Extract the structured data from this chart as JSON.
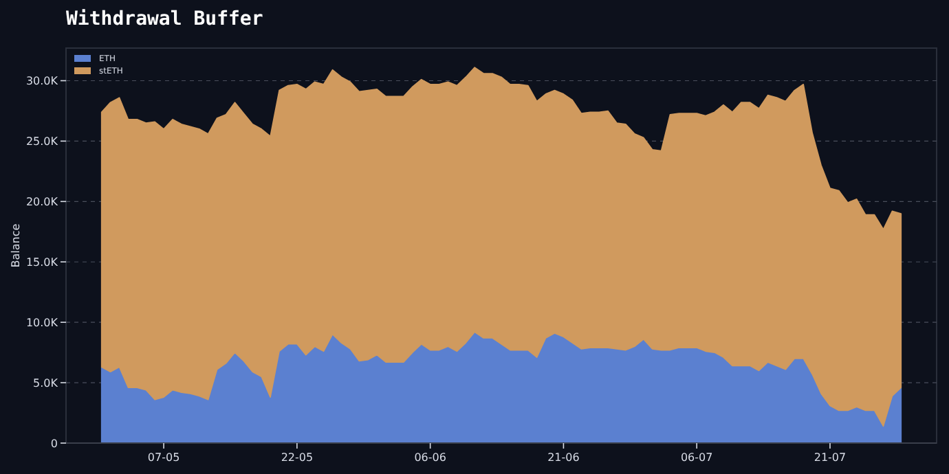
{
  "chart_data": {
    "type": "area",
    "stacked": true,
    "title": "Withdrawal Buffer",
    "ylabel": "Balance",
    "grid": "y",
    "legend": "top left",
    "x": [
      "--04-30",
      "--05-01",
      "--05-02",
      "--05-03",
      "--05-04",
      "--05-05",
      "--05-06",
      "--05-07",
      "--05-08",
      "--05-09",
      "--05-10",
      "--05-11",
      "--05-12",
      "--05-13",
      "--05-14",
      "--05-15",
      "--05-16",
      "--05-17",
      "--05-18",
      "--05-19",
      "--05-20",
      "--05-21",
      "--05-22",
      "--05-23",
      "--05-24",
      "--05-25",
      "--05-26",
      "--05-27",
      "--05-28",
      "--05-29",
      "--05-30",
      "--05-31",
      "--06-01",
      "--06-02",
      "--06-03",
      "--06-04",
      "--06-05",
      "--06-06",
      "--06-07",
      "--06-08",
      "--06-09",
      "--06-10",
      "--06-11",
      "--06-12",
      "--06-13",
      "--06-14",
      "--06-15",
      "--06-16",
      "--06-17",
      "--06-18",
      "--06-19",
      "--06-20",
      "--06-21",
      "--06-22",
      "--06-23",
      "--06-24",
      "--06-25",
      "--06-26",
      "--06-27",
      "--06-28",
      "--06-29",
      "--06-30",
      "--07-01",
      "--07-02",
      "--07-03",
      "--07-04",
      "--07-05",
      "--07-06",
      "--07-07",
      "--07-08",
      "--07-09",
      "--07-10",
      "--07-11",
      "--07-12",
      "--07-13",
      "--07-14",
      "--07-15",
      "--07-16",
      "--07-17",
      "--07-18",
      "--07-19",
      "--07-20",
      "--07-21",
      "--07-22",
      "--07-23",
      "--07-24",
      "--07-25",
      "--07-26",
      "--07-27",
      "--07-28",
      "--07-29"
    ],
    "series": [
      {
        "name": "ETH",
        "color": "#5b80d0",
        "values": [
          6300,
          5900,
          6300,
          4600,
          4600,
          4400,
          3600,
          3800,
          4400,
          4200,
          4100,
          3900,
          3600,
          6100,
          6600,
          7500,
          6800,
          5900,
          5500,
          3800,
          7600,
          8200,
          8200,
          7300,
          8000,
          7600,
          9000,
          8300,
          7800,
          6800,
          6900,
          7300,
          6700,
          6700,
          6700,
          7500,
          8200,
          7700,
          7700,
          8000,
          7600,
          8300,
          9200,
          8700,
          8700,
          8200,
          7700,
          7700,
          7700,
          7100,
          8700,
          9100,
          8800,
          8300,
          7800,
          7900,
          7900,
          7900,
          7800,
          7700,
          8000,
          8600,
          7800,
          7700,
          7700,
          7900,
          7900,
          7900,
          7600,
          7500,
          7100,
          6400,
          6400,
          6400,
          6000,
          6700,
          6400,
          6100,
          7000,
          7000,
          5700,
          4100,
          3100,
          2700,
          2700,
          3000,
          2700,
          2700,
          1400,
          3900,
          4600
        ]
      },
      {
        "name": "stETH",
        "color": "#d09a5e",
        "values": [
          21100,
          22300,
          22300,
          22200,
          22200,
          22100,
          23000,
          22200,
          22400,
          22200,
          22100,
          22100,
          22000,
          20800,
          20600,
          20700,
          20500,
          20500,
          20500,
          21600,
          21600,
          21400,
          21500,
          22000,
          21900,
          22100,
          21900,
          22000,
          22100,
          22300,
          22300,
          22000,
          22000,
          22000,
          22000,
          22000,
          21900,
          22000,
          22000,
          21900,
          22000,
          22000,
          21900,
          21900,
          21900,
          22100,
          22000,
          22000,
          21900,
          21200,
          20200,
          20100,
          20100,
          20100,
          19500,
          19500,
          19500,
          19600,
          18700,
          18700,
          17600,
          16700,
          16500,
          16500,
          19500,
          19400,
          19400,
          19400,
          19500,
          19900,
          20900,
          21000,
          21800,
          21800,
          21700,
          22100,
          22200,
          22200,
          22200,
          22700,
          20000,
          18900,
          18000,
          18200,
          17200,
          17200,
          16200,
          16200,
          16300,
          15300,
          14400
        ]
      }
    ],
    "xlim": [
      "--04-26",
      "--08-02"
    ],
    "xticks": [
      {
        "value": "--05-07",
        "label": "07-05"
      },
      {
        "value": "--05-22",
        "label": "22-05"
      },
      {
        "value": "--06-06",
        "label": "06-06"
      },
      {
        "value": "--06-21",
        "label": "21-06"
      },
      {
        "value": "--07-06",
        "label": "06-07"
      },
      {
        "value": "--07-21",
        "label": "21-07"
      }
    ],
    "ylim": [
      0,
      32700
    ],
    "yticks": [
      {
        "value": 0,
        "label": "0"
      },
      {
        "value": 5000,
        "label": "5.0K"
      },
      {
        "value": 10000,
        "label": "10.0K"
      },
      {
        "value": 15000,
        "label": "15.0K"
      },
      {
        "value": 20000,
        "label": "20.0K"
      },
      {
        "value": 25000,
        "label": "25.0K"
      },
      {
        "value": 30000,
        "label": "30.0K"
      }
    ]
  }
}
